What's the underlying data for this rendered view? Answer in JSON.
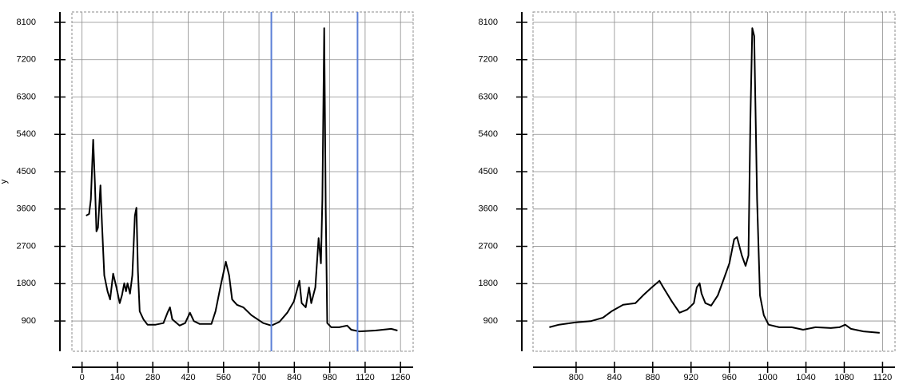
{
  "chart_data": [
    {
      "type": "line",
      "ylabel": "y",
      "x": [
        16,
        28,
        35,
        44,
        51,
        57,
        63,
        73,
        79,
        88,
        101,
        111,
        123,
        136,
        149,
        158,
        167,
        174,
        180,
        190,
        199,
        209,
        215,
        221,
        228,
        243,
        259,
        291,
        322,
        338,
        348,
        357,
        386,
        408,
        427,
        442,
        465,
        512,
        528,
        547,
        569,
        582,
        594,
        613,
        638,
        670,
        717,
        749,
        781,
        812,
        838,
        860,
        869,
        885,
        898,
        907,
        923,
        936,
        945,
        951,
        958,
        964,
        970,
        986,
        1018,
        1049,
        1065,
        1097,
        1160,
        1223,
        1248
      ],
      "series": [
        {
          "color": "#000000",
          "values": [
            3440,
            3480,
            3830,
            5270,
            4210,
            3060,
            3150,
            4170,
            3250,
            2000,
            1615,
            1420,
            2040,
            1710,
            1330,
            1520,
            1810,
            1615,
            1810,
            1560,
            2000,
            3440,
            3630,
            2100,
            1135,
            940,
            810,
            810,
            850,
            1100,
            1230,
            940,
            790,
            850,
            1100,
            900,
            830,
            830,
            1135,
            1710,
            2330,
            2000,
            1420,
            1290,
            1230,
            1040,
            850,
            790,
            880,
            1100,
            1370,
            1870,
            1330,
            1230,
            1710,
            1330,
            1710,
            2900,
            2290,
            3830,
            7960,
            3630,
            850,
            750,
            750,
            790,
            690,
            650,
            670,
            710,
            670
          ]
        }
      ],
      "markers": {
        "values": [
          749,
          1090
        ],
        "color": "#5b7fd6"
      },
      "xlim": [
        -40,
        1310
      ],
      "xticks": [
        0,
        140,
        280,
        420,
        560,
        700,
        840,
        980,
        1120,
        1260
      ],
      "ylim": [
        170,
        8350
      ],
      "yticks": [
        900,
        1800,
        2700,
        3600,
        4500,
        5400,
        6300,
        7200,
        8100
      ],
      "grid": true
    },
    {
      "type": "line",
      "x": [
        772,
        782,
        799,
        816,
        828,
        837,
        849,
        862,
        870,
        879,
        887,
        891,
        900,
        908,
        916,
        923,
        926,
        929,
        931,
        935,
        941,
        948,
        954,
        960,
        965,
        968,
        973,
        977,
        980,
        982,
        984,
        986,
        989,
        992,
        996,
        1001,
        1012,
        1025,
        1037,
        1050,
        1066,
        1075,
        1081,
        1087,
        1100,
        1117
      ],
      "series": [
        {
          "color": "#000000",
          "values": [
            750,
            810,
            865,
            900,
            980,
            1135,
            1290,
            1330,
            1520,
            1710,
            1870,
            1710,
            1370,
            1100,
            1175,
            1330,
            1710,
            1810,
            1560,
            1330,
            1270,
            1520,
            1900,
            2290,
            2870,
            2920,
            2480,
            2230,
            2480,
            5750,
            7960,
            7770,
            3830,
            1520,
            1040,
            810,
            750,
            750,
            690,
            750,
            730,
            750,
            810,
            710,
            650,
            615
          ]
        }
      ],
      "xlim": [
        755,
        1133
      ],
      "xticks": [
        800,
        840,
        880,
        920,
        960,
        1000,
        1040,
        1080,
        1120
      ],
      "ylim": [
        170,
        8350
      ],
      "yticks": [
        900,
        1800,
        2700,
        3600,
        4500,
        5400,
        6300,
        7200,
        8100
      ],
      "grid": true
    }
  ]
}
